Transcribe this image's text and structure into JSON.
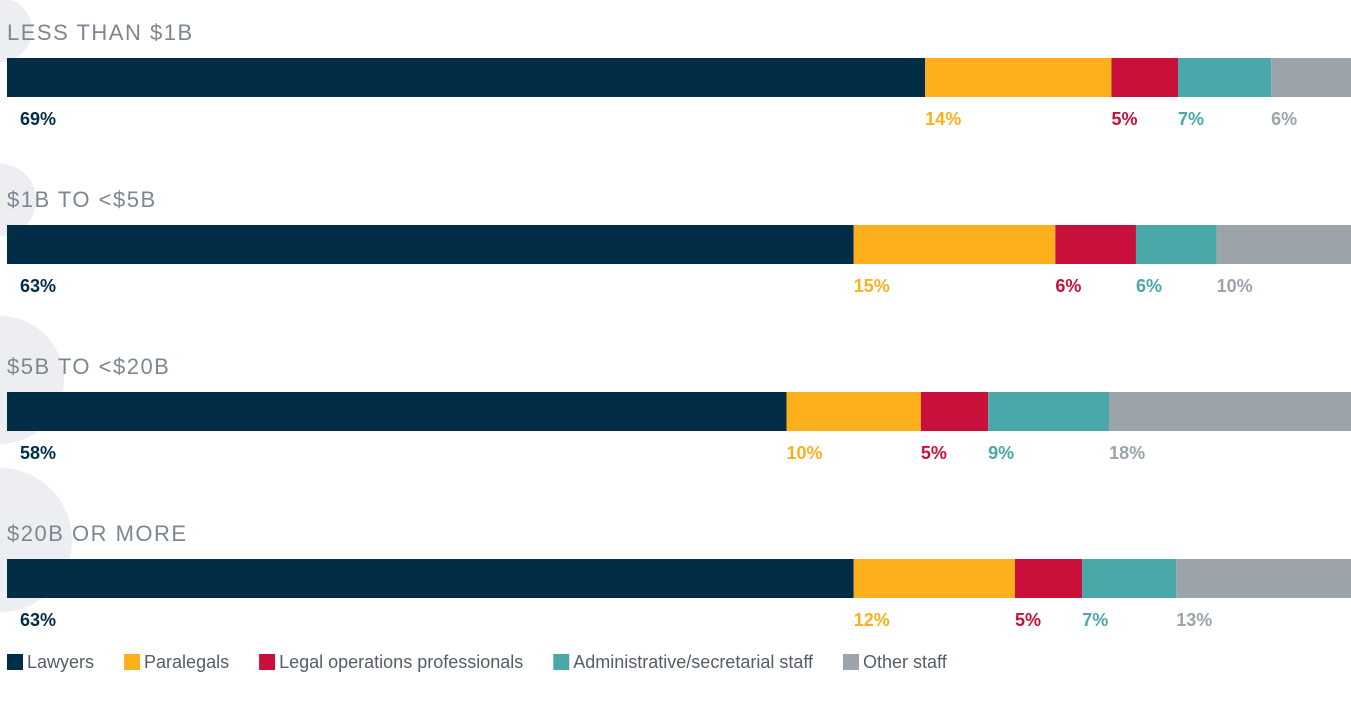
{
  "chart_data": {
    "type": "bar",
    "orientation": "horizontal",
    "stacked": true,
    "categories": [
      "LESS THAN $1B",
      "$1B TO <$5B",
      "$5B TO <$20B",
      "$20B OR MORE"
    ],
    "series": [
      {
        "name": "Lawyers",
        "color": "#022d47",
        "values": [
          69,
          63,
          58,
          63
        ],
        "value_labels": [
          "69%",
          "63%",
          "58%",
          "63%"
        ]
      },
      {
        "name": "Paralegals",
        "color": "#fdb01b",
        "values": [
          14,
          15,
          10,
          12
        ],
        "value_labels": [
          "14%",
          "15%",
          "10%",
          "12%"
        ]
      },
      {
        "name": "Legal operations professionals",
        "color": "#c8103a",
        "values": [
          5,
          6,
          5,
          5
        ],
        "value_labels": [
          "5%",
          "6%",
          "5%",
          "5%"
        ]
      },
      {
        "name": "Administrative/secretarial staff",
        "color": "#4aa9a8",
        "values": [
          7,
          6,
          9,
          7
        ],
        "value_labels": [
          "7%",
          "6%",
          "9%",
          "7%"
        ]
      },
      {
        "name": "Other staff",
        "color": "#9ba3ab",
        "values": [
          6,
          10,
          18,
          13
        ],
        "value_labels": [
          "6%",
          "10%",
          "18%",
          "13%"
        ]
      }
    ],
    "legend": "bottom-left"
  }
}
